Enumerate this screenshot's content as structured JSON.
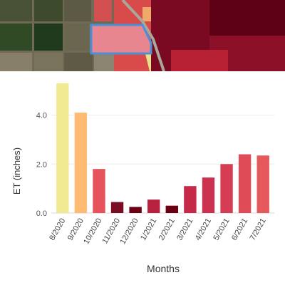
{
  "map": {
    "field_fill": "#e8868f",
    "selected_field_outline": "#4a90d9",
    "et_palette": [
      "#f0e68c",
      "#fdb56b",
      "#e8505b",
      "#c0304a",
      "#8b0a2a",
      "#6b0015"
    ]
  },
  "chart_data": {
    "type": "bar",
    "categories": [
      "8/2020",
      "9/2020",
      "10/2020",
      "11/2020",
      "12/2020",
      "1/2021",
      "2/2021",
      "3/2021",
      "4/2021",
      "5/2021",
      "6/2021",
      "7/2021"
    ],
    "values": [
      5.3,
      4.1,
      1.8,
      0.45,
      0.25,
      0.55,
      0.3,
      1.1,
      1.45,
      2.0,
      2.4,
      2.35
    ],
    "colors": [
      "#f2ea92",
      "#fdbb73",
      "#e6535a",
      "#7a0c24",
      "#6b0015",
      "#b8223f",
      "#6b0015",
      "#c52a48",
      "#cc3150",
      "#d63d55",
      "#e04b58",
      "#e5585c"
    ],
    "ylabel": "ET (inches)",
    "xlabel": "Months",
    "yticks": [
      0.0,
      2.0,
      4.0
    ],
    "ytick_labels": [
      "0.0",
      "2.0",
      "4.0"
    ],
    "ylim": [
      0,
      5.5
    ],
    "grid": true
  }
}
